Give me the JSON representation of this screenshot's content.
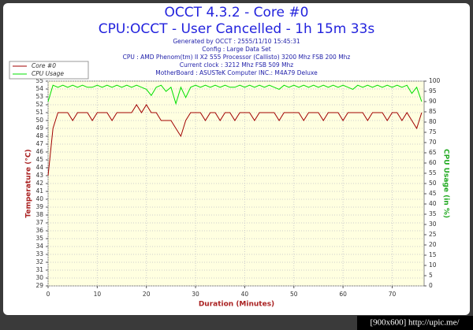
{
  "chart_data": {
    "type": "line",
    "title": "OCCT 4.3.2 - Core #0",
    "subtitle": "CPU:OCCT - User Cancelled - 1h 15m 33s",
    "info": [
      "Generated by OCCT : 2555/11/10 15:45:31",
      "Config : Large Data Set",
      "CPU : AMD Phenom(tm) II X2 555 Processor (Callisto) 3200 Mhz FSB 200 Mhz",
      "Current clock : 3212 Mhz FSB 509 Mhz",
      "MotherBoard : ASUSTeK Computer INC.: M4A79 Deluxe"
    ],
    "xlabel": "Duration (Minutes)",
    "ylabel": "Temperature (°C)",
    "y2label": "CPU Usage (in %)",
    "watermark": "[900x600] http://upic.me/",
    "legend": "top-left",
    "grid": true,
    "x": [
      0,
      1,
      2,
      3,
      4,
      5,
      6,
      7,
      8,
      9,
      10,
      11,
      12,
      13,
      14,
      15,
      16,
      17,
      18,
      19,
      20,
      21,
      22,
      23,
      24,
      25,
      26,
      27,
      28,
      29,
      30,
      31,
      32,
      33,
      34,
      35,
      36,
      37,
      38,
      39,
      40,
      41,
      42,
      43,
      44,
      45,
      46,
      47,
      48,
      49,
      50,
      51,
      52,
      53,
      54,
      55,
      56,
      57,
      58,
      59,
      60,
      61,
      62,
      63,
      64,
      65,
      66,
      67,
      68,
      69,
      70,
      71,
      72,
      73,
      74,
      75,
      76
    ],
    "series": [
      {
        "name": "Core #0",
        "color": "#a00000",
        "values": [
          43,
          49,
          51,
          51,
          51,
          50,
          51,
          51,
          51,
          50,
          51,
          51,
          51,
          50,
          51,
          51,
          51,
          51,
          52,
          51,
          52,
          51,
          51,
          50,
          50,
          50,
          49,
          48,
          50,
          51,
          51,
          51,
          50,
          51,
          51,
          50,
          51,
          51,
          50,
          51,
          51,
          51,
          50,
          51,
          51,
          51,
          51,
          50,
          51,
          51,
          51,
          51,
          50,
          51,
          51,
          51,
          50,
          51,
          51,
          51,
          50,
          51,
          51,
          51,
          51,
          50,
          51,
          51,
          51,
          50,
          51,
          51,
          50,
          51,
          50,
          49,
          51
        ]
      },
      {
        "name": "CPU Usage",
        "color": "#00e000",
        "axis": "y2",
        "values": [
          90,
          98,
          97,
          98,
          97,
          98,
          97,
          98,
          97,
          97,
          98,
          97,
          98,
          97,
          98,
          97,
          98,
          97,
          98,
          97,
          96,
          93,
          97,
          98,
          95,
          97,
          89,
          97,
          92,
          97,
          98,
          97,
          98,
          97,
          98,
          97,
          98,
          97,
          97,
          98,
          97,
          98,
          97,
          98,
          97,
          98,
          97,
          96,
          98,
          97,
          98,
          97,
          98,
          97,
          98,
          97,
          98,
          97,
          98,
          97,
          98,
          97,
          96,
          98,
          97,
          98,
          97,
          98,
          97,
          98,
          97,
          98,
          97,
          98,
          94,
          97,
          90
        ]
      }
    ],
    "xlim": [
      0,
      76.5
    ],
    "xticks": [
      0,
      10,
      20,
      30,
      40,
      50,
      60,
      70
    ],
    "ylim": [
      29,
      55
    ],
    "yticks": [
      29,
      30,
      31,
      32,
      33,
      34,
      35,
      36,
      37,
      38,
      39,
      40,
      41,
      42,
      43,
      44,
      45,
      46,
      47,
      48,
      49,
      50,
      51,
      52,
      53,
      54,
      55
    ],
    "y2lim": [
      0,
      100
    ],
    "y2ticks": [
      0,
      5,
      10,
      15,
      20,
      25,
      30,
      35,
      40,
      45,
      50,
      55,
      60,
      65,
      70,
      75,
      80,
      85,
      90,
      95,
      100
    ]
  }
}
